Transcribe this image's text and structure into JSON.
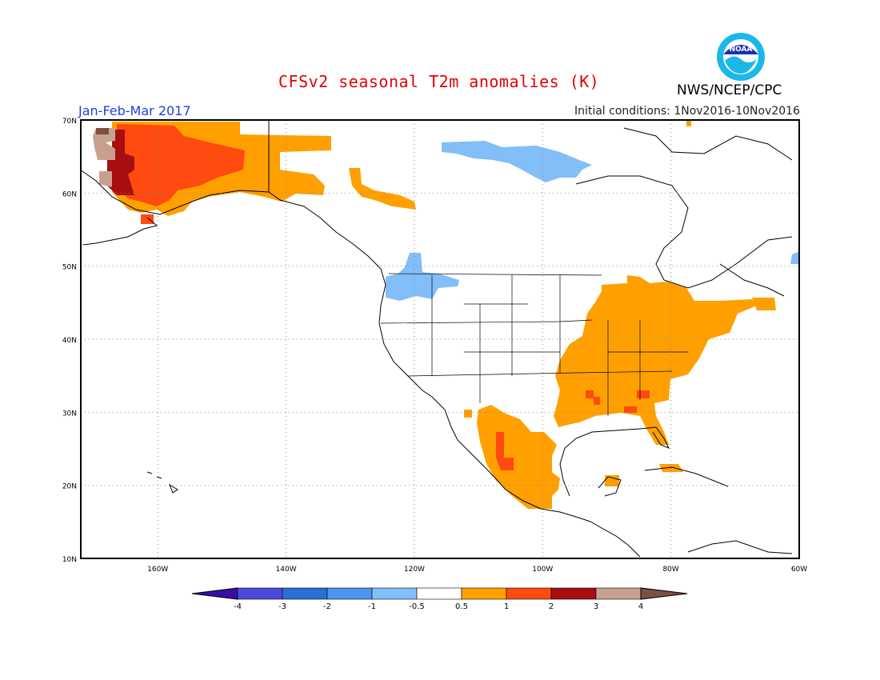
{
  "header": {
    "title": "CFSv2 seasonal T2m anomalies (K)",
    "period": "Jan-Feb-Mar 2017",
    "initial_conditions": "Initial conditions: 1Nov2016-10Nov2016",
    "agency": "NWS/NCEP/CPC",
    "logo_text": "NOAA"
  },
  "map": {
    "lon_range": [
      -172,
      -60
    ],
    "lat_range": [
      10,
      70
    ],
    "lat_ticks": [
      {
        "value": 70,
        "label": "70N"
      },
      {
        "value": 60,
        "label": "60N"
      },
      {
        "value": 50,
        "label": "50N"
      },
      {
        "value": 40,
        "label": "40N"
      },
      {
        "value": 30,
        "label": "30N"
      },
      {
        "value": 20,
        "label": "20N"
      },
      {
        "value": 10,
        "label": "10N"
      }
    ],
    "lon_ticks": [
      {
        "value": -160,
        "label": "160W"
      },
      {
        "value": -140,
        "label": "140W"
      },
      {
        "value": -120,
        "label": "120W"
      },
      {
        "value": -100,
        "label": "100W"
      },
      {
        "value": -80,
        "label": "80W"
      },
      {
        "value": -60,
        "label": "60W"
      }
    ]
  },
  "colorbar": {
    "labels": [
      "-4",
      "-3",
      "-2",
      "-1",
      "-0.5",
      "0.5",
      "1",
      "2",
      "3",
      "4"
    ],
    "colors": [
      "#3a0ca8",
      "#4a4adc",
      "#2a6ed6",
      "#4a96f0",
      "#82bef8",
      "#ffffff",
      "#ffa000",
      "#ff4a10",
      "#a80e10",
      "#c8a090",
      "#7a5040"
    ]
  }
}
